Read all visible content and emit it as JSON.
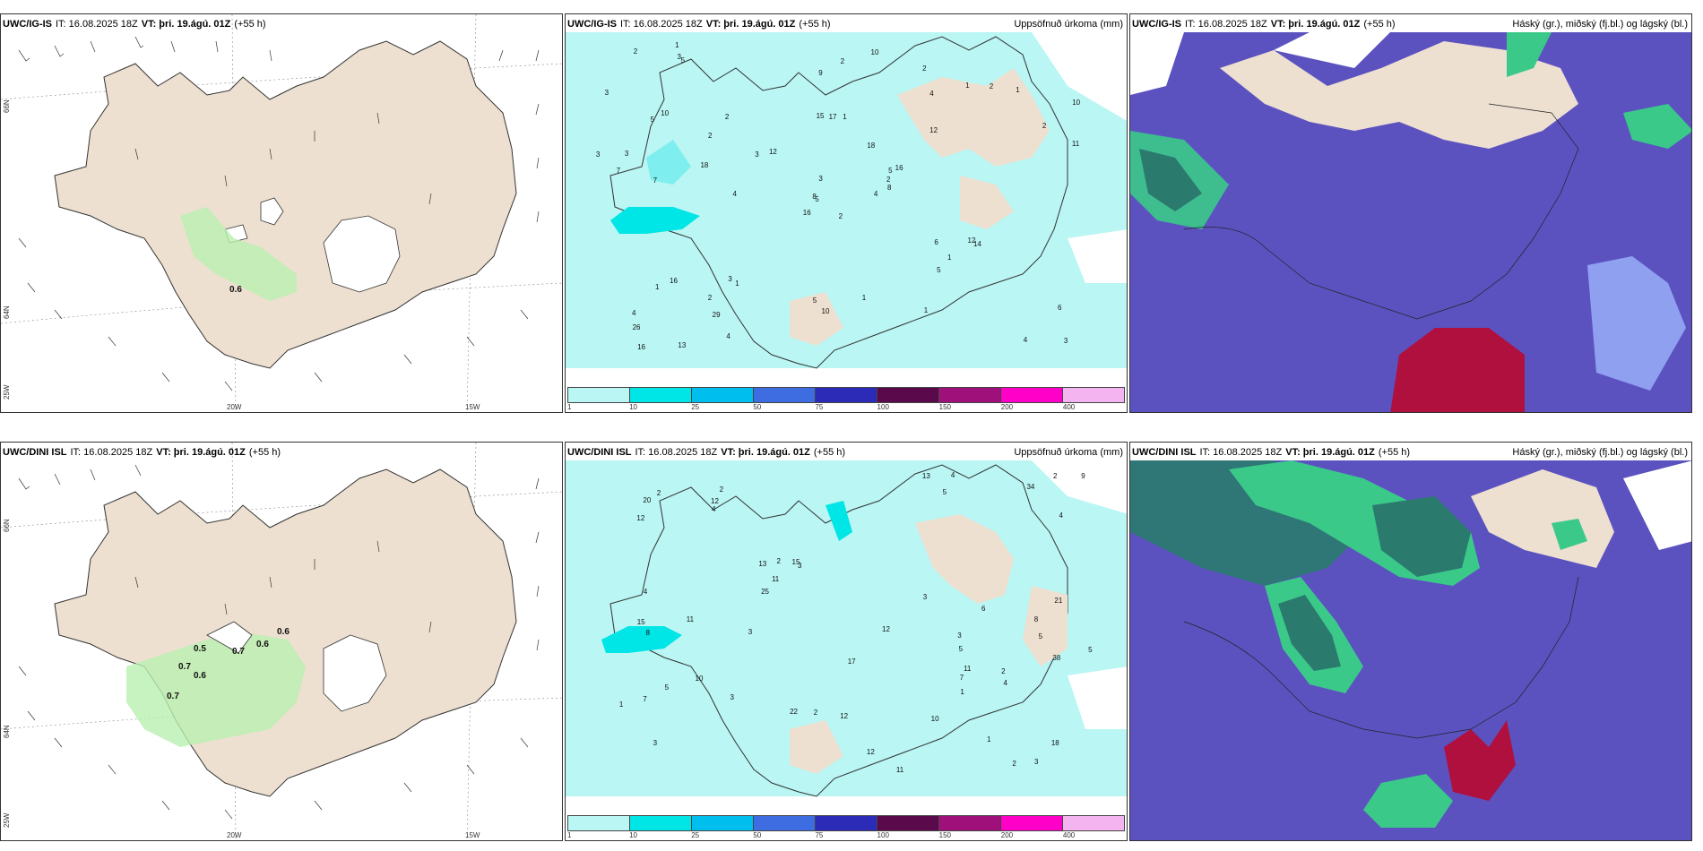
{
  "colors": {
    "land": "#ede0d0",
    "precip_light": "#b9f6f4",
    "precip_mid": "#00e5e5",
    "cloud_low": "#5b52c0",
    "cloud_green": "#3bc98a",
    "cloud_red": "#b0103e"
  },
  "panels": [
    {
      "id": "p1",
      "model": "UWC/IG-IS",
      "it": "IT: 16.08.2025 18Z",
      "vt": "VT: þri. 19.ágú. 01Z",
      "lead": "(+55 h)",
      "right": "",
      "labels": [
        "0.6"
      ]
    },
    {
      "id": "p2",
      "model": "UWC/IG-IS",
      "it": "IT: 16.08.2025 18Z",
      "vt": "VT: þri. 19.ágú. 01Z",
      "lead": "(+55 h)",
      "right": "Uppsöfnuð úrkoma (mm)"
    },
    {
      "id": "p3",
      "model": "UWC/IG-IS",
      "it": "IT: 16.08.2025 18Z",
      "vt": "VT: þri. 19.ágú. 01Z",
      "lead": "(+55 h)",
      "right": "Háský (gr.), miðský (fj.bl.) og lágský (bl.)"
    },
    {
      "id": "p4",
      "model": "UWC/DINI ISL",
      "it": "IT: 16.08.2025 18Z",
      "vt": "VT: þri. 19.ágú. 01Z",
      "lead": "(+55 h)",
      "right": "",
      "labels": [
        "0.6",
        "0.5",
        "0.7",
        "0.6",
        "0.7",
        "0.6",
        "0.7"
      ]
    },
    {
      "id": "p5",
      "model": "UWC/DINI ISL",
      "it": "IT: 16.08.2025 18Z",
      "vt": "VT: þri. 19.ágú. 01Z",
      "lead": "(+55 h)",
      "right": "Uppsöfnuð úrkoma (mm)"
    },
    {
      "id": "p6",
      "model": "UWC/DINI ISL",
      "it": "IT: 16.08.2025 18Z",
      "vt": "VT: þri. 19.ágú. 01Z",
      "lead": "(+55 h)",
      "right": "Háský (gr.), miðský (fj.bl.) og lágský (bl.)"
    }
  ],
  "axis": {
    "lat1": "66N",
    "lat2": "64N",
    "lon1": "25W",
    "lon2": "20W",
    "lon3": "15W"
  },
  "legend": {
    "colors": [
      "#b9f6f4",
      "#00e5e5",
      "#00bfef",
      "#3d6de0",
      "#2b2bb8",
      "#5a0a4a",
      "#a0107a",
      "#ff00c8",
      "#f4b4f0"
    ],
    "labels": [
      "1",
      "10",
      "25",
      "50",
      "75",
      "100",
      "150",
      "200",
      "400"
    ]
  },
  "precip_top": [
    "2",
    "5",
    "5",
    "4",
    "5",
    "1",
    "2",
    "1",
    "4",
    "4",
    "5",
    "3",
    "7",
    "10",
    "16",
    "12",
    "13",
    "15",
    "18",
    "16",
    "12",
    "26",
    "29",
    "17",
    "16",
    "14",
    "10",
    "9",
    "7",
    "6",
    "11",
    "8",
    "5",
    "3",
    "2",
    "1",
    "3",
    "4",
    "6",
    "12",
    "10",
    "3",
    "18",
    "5",
    "4",
    "3",
    "2",
    "16",
    "10",
    "8",
    "1",
    "2",
    "3",
    "1",
    "1",
    "2",
    "3",
    "2",
    "1",
    "1",
    "2",
    "4",
    "3",
    "2",
    "2",
    "1"
  ],
  "precip_bottom": [
    "5",
    "5",
    "3",
    "2",
    "3",
    "1",
    "7",
    "5",
    "13",
    "11",
    "12",
    "15",
    "20",
    "18",
    "22",
    "21",
    "17",
    "12",
    "15",
    "10",
    "9",
    "34",
    "25",
    "38",
    "13",
    "12",
    "11",
    "8",
    "4",
    "6",
    "12",
    "10",
    "11",
    "3",
    "8",
    "4",
    "7",
    "11",
    "12",
    "5",
    "4",
    "4",
    "3",
    "2",
    "2",
    "3",
    "1",
    "2",
    "3",
    "4",
    "5",
    "2",
    "2",
    "3",
    "1",
    "2"
  ]
}
